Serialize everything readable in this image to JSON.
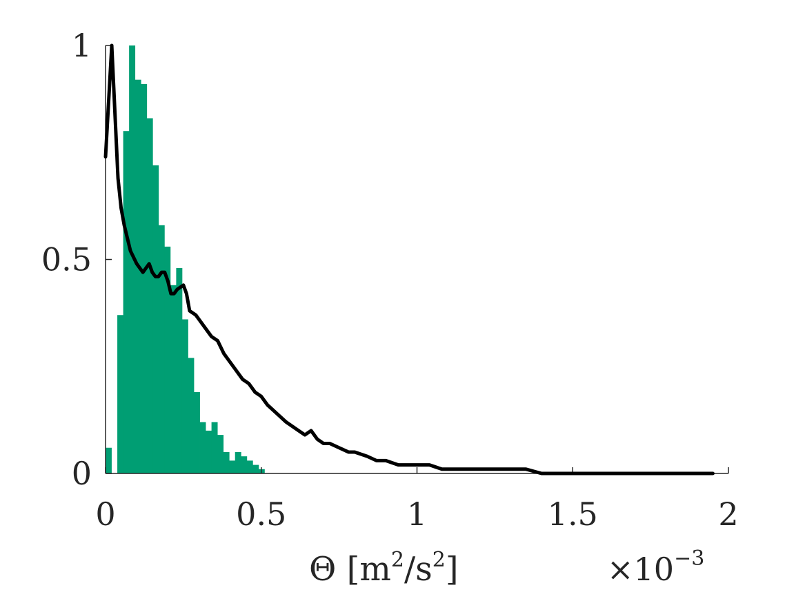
{
  "chart_data": {
    "type": "bar",
    "title": "",
    "xlabel": "Θ [m",
    "xlabel_sup_1": "2",
    "xlabel_mid": "/s",
    "xlabel_sup_2": "2",
    "xlabel_end": "]",
    "x_multiplier_base": "×10",
    "x_multiplier_exp": "−3",
    "ylabel": "",
    "xlim": [
      0,
      2
    ],
    "ylim": [
      0,
      1
    ],
    "xticks": [
      0,
      0.5,
      1,
      1.5,
      2
    ],
    "xtick_labels": [
      "0",
      "0.5",
      "1",
      "1.5",
      "2"
    ],
    "yticks": [
      0,
      0.5,
      1
    ],
    "ytick_labels": [
      "0",
      "0.5",
      "1"
    ],
    "grid": false,
    "colors": {
      "histogram": "#009e73",
      "line": "#000000",
      "axis": "#262626"
    },
    "series": [
      {
        "kind": "histogram",
        "bin_width": 0.0189,
        "bin_start": 0,
        "values": [
          0.06,
          0.0,
          0.37,
          0.8,
          1.0,
          0.92,
          0.91,
          0.83,
          0.72,
          0.58,
          0.53,
          0.44,
          0.48,
          0.36,
          0.27,
          0.19,
          0.12,
          0.1,
          0.12,
          0.09,
          0.05,
          0.03,
          0.05,
          0.04,
          0.03,
          0.02,
          0.01,
          0.0
        ]
      },
      {
        "kind": "line",
        "x": [
          0.0,
          0.02,
          0.04,
          0.05,
          0.06,
          0.08,
          0.1,
          0.11,
          0.12,
          0.13,
          0.14,
          0.15,
          0.16,
          0.17,
          0.18,
          0.19,
          0.2,
          0.21,
          0.22,
          0.23,
          0.25,
          0.26,
          0.27,
          0.29,
          0.3,
          0.32,
          0.34,
          0.36,
          0.38,
          0.4,
          0.42,
          0.44,
          0.46,
          0.48,
          0.5,
          0.52,
          0.55,
          0.58,
          0.6,
          0.62,
          0.64,
          0.66,
          0.68,
          0.7,
          0.72,
          0.75,
          0.78,
          0.8,
          0.84,
          0.87,
          0.9,
          0.94,
          0.97,
          1.0,
          1.04,
          1.08,
          1.12,
          1.16,
          1.2,
          1.25,
          1.3,
          1.35,
          1.4,
          1.45,
          1.5,
          1.55,
          1.6,
          1.7,
          1.8,
          1.95
        ],
        "y": [
          0.74,
          1.0,
          0.69,
          0.62,
          0.58,
          0.52,
          0.49,
          0.48,
          0.47,
          0.48,
          0.49,
          0.47,
          0.46,
          0.46,
          0.47,
          0.47,
          0.45,
          0.42,
          0.42,
          0.43,
          0.44,
          0.42,
          0.38,
          0.37,
          0.36,
          0.34,
          0.32,
          0.31,
          0.28,
          0.26,
          0.24,
          0.22,
          0.21,
          0.19,
          0.18,
          0.16,
          0.14,
          0.12,
          0.11,
          0.1,
          0.09,
          0.1,
          0.08,
          0.07,
          0.07,
          0.06,
          0.05,
          0.05,
          0.04,
          0.03,
          0.03,
          0.02,
          0.02,
          0.02,
          0.02,
          0.01,
          0.01,
          0.01,
          0.01,
          0.01,
          0.01,
          0.01,
          0.0,
          0.0,
          0.0,
          0.0,
          0.0,
          0.0,
          0.0,
          0.0
        ]
      }
    ]
  }
}
